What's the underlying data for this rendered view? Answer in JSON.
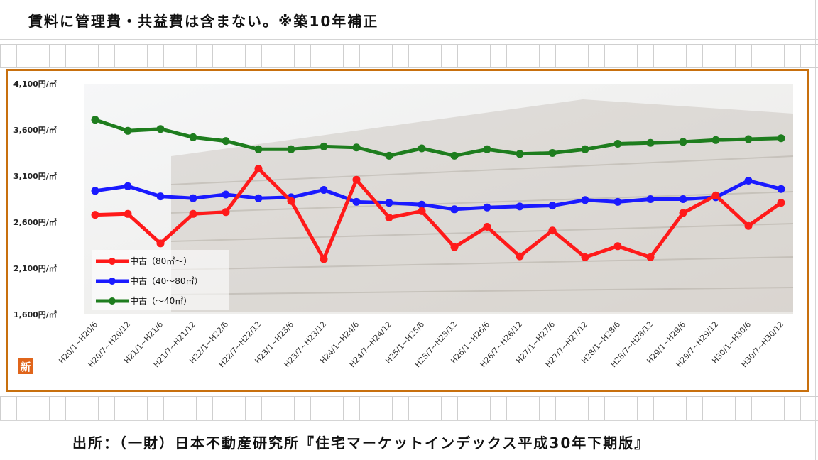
{
  "header": {
    "caption": "賃料に管理費・共益費は含まない。※築10年補正"
  },
  "footer": {
    "caption": "出所：（一財）日本不動産研究所『住宅マーケットインデックス平成30年下期版』"
  },
  "logo_text": "新",
  "colors": {
    "frame": "#c8700e",
    "red": "#ff1a1a",
    "blue": "#1a1aff",
    "green": "#1e7d1e"
  },
  "chart_data": {
    "type": "line",
    "categories": [
      "H20/1~H20/6",
      "H20/7~H20/12",
      "H21/1~H21/6",
      "H21/7~H21/12",
      "H22/1~H22/6",
      "H22/7~H22/12",
      "H23/1~H23/6",
      "H23/7~H23/12",
      "H24/1~H24/6",
      "H24/7~H24/12",
      "H25/1~H25/6",
      "H25/7~H25/12",
      "H26/1~H26/6",
      "H26/7~H26/12",
      "H27/1~H27/6",
      "H27/7~H27/12",
      "H28/1~H28/6",
      "H28/7~H28/12",
      "H29/1~H29/6",
      "H29/7~H29/12",
      "H30/1~H30/6",
      "H30/7~H30/12"
    ],
    "series": [
      {
        "name": "中古（80㎡～）",
        "color": "#ff1a1a",
        "values": [
          2680,
          2690,
          2370,
          2690,
          2710,
          3180,
          2830,
          2200,
          3060,
          2650,
          2720,
          2330,
          2550,
          2230,
          2510,
          2220,
          2340,
          2220,
          2700,
          2890,
          2560,
          2810
        ]
      },
      {
        "name": "中古（40～80㎡）",
        "color": "#1a1aff",
        "values": [
          2940,
          2990,
          2880,
          2860,
          2900,
          2860,
          2870,
          2950,
          2820,
          2810,
          2790,
          2740,
          2760,
          2770,
          2780,
          2840,
          2820,
          2850,
          2850,
          2870,
          3050,
          2960
        ]
      },
      {
        "name": "中古（～40㎡）",
        "color": "#1e7d1e",
        "values": [
          3710,
          3590,
          3610,
          3520,
          3480,
          3390,
          3390,
          3420,
          3410,
          3320,
          3400,
          3320,
          3390,
          3340,
          3350,
          3390,
          3450,
          3460,
          3470,
          3490,
          3500,
          3510
        ]
      }
    ],
    "yticks": [
      "4,100円/㎡",
      "3,600円/㎡",
      "3,100円/㎡",
      "2,600円/㎡",
      "2,100円/㎡",
      "1,600円/㎡"
    ],
    "ylim": [
      1600,
      4100
    ],
    "legend_position": "bottom-left",
    "grid": false
  }
}
